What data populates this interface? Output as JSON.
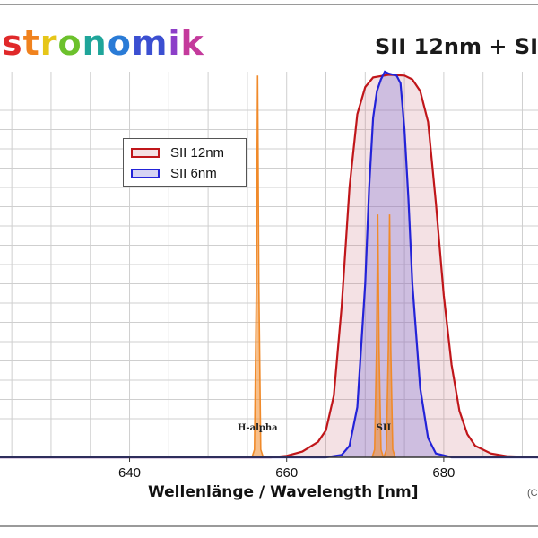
{
  "brand": {
    "text": "stronomik",
    "colors": [
      "#e0292a",
      "#f0821e",
      "#e6c619",
      "#6cc12c",
      "#1fa59a",
      "#2a7bd6",
      "#3b4fd1",
      "#8c3fc8",
      "#c43a9c"
    ]
  },
  "copyright_fragment": "(C",
  "chart_data": {
    "type": "area",
    "title": "SII 12nm + SI",
    "xlabel": "Wellenlänge / Wavelength [nm]",
    "ylabel": "",
    "xlim": [
      623.5,
      692
    ],
    "ylim": [
      0,
      100
    ],
    "xticks": [
      640,
      660,
      680
    ],
    "grid": true,
    "legend_position": "upper-left",
    "series": [
      {
        "name": "SII 12nm",
        "color": "#c0161a",
        "fill": "rgba(205,120,130,0.22)",
        "points": [
          [
            623.5,
            0
          ],
          [
            658,
            0
          ],
          [
            660,
            0.4
          ],
          [
            662,
            1.5
          ],
          [
            664,
            4
          ],
          [
            665,
            7
          ],
          [
            666,
            16
          ],
          [
            667,
            39
          ],
          [
            668,
            70
          ],
          [
            669,
            89
          ],
          [
            670,
            96
          ],
          [
            671,
            98.5
          ],
          [
            673,
            99.2
          ],
          [
            675,
            99
          ],
          [
            676,
            98
          ],
          [
            677,
            95
          ],
          [
            678,
            87
          ],
          [
            679,
            66
          ],
          [
            680,
            42
          ],
          [
            681,
            24
          ],
          [
            682,
            12
          ],
          [
            683,
            6
          ],
          [
            684,
            3
          ],
          [
            686,
            1
          ],
          [
            688,
            0.3
          ],
          [
            692,
            0
          ]
        ]
      },
      {
        "name": "SII 6nm",
        "color": "#2323d8",
        "fill": "rgba(120,110,215,0.30)",
        "points": [
          [
            623.5,
            0
          ],
          [
            665,
            0
          ],
          [
            667,
            0.6
          ],
          [
            668,
            3
          ],
          [
            669,
            13
          ],
          [
            670,
            45
          ],
          [
            670.5,
            70
          ],
          [
            671,
            88
          ],
          [
            671.5,
            95
          ],
          [
            672,
            98
          ],
          [
            672.5,
            100
          ],
          [
            673,
            99.5
          ],
          [
            674,
            99
          ],
          [
            674.5,
            97
          ],
          [
            675,
            85
          ],
          [
            675.5,
            67
          ],
          [
            676,
            45
          ],
          [
            677,
            18
          ],
          [
            678,
            5
          ],
          [
            679,
            1
          ],
          [
            681,
            0
          ],
          [
            692,
            0
          ]
        ]
      }
    ],
    "emission_lines": [
      {
        "label": "H-alpha",
        "center": 656.3,
        "peak": 99,
        "color": "#f08a2a"
      },
      {
        "label": "SII",
        "center": 671.6,
        "peak": 63,
        "color": "#f08a2a"
      },
      {
        "label": "SII",
        "center": 673.1,
        "peak": 63,
        "color": "#f08a2a"
      }
    ]
  }
}
